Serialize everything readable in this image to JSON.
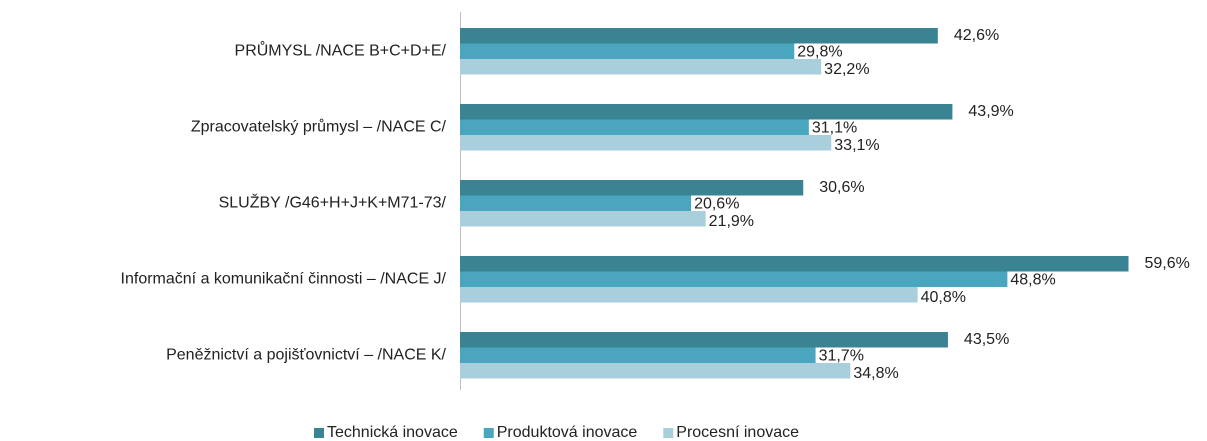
{
  "chart_data": {
    "type": "hbar",
    "categories": [
      "PRŮMYSL  /NACE B+C+D+E/",
      "Zpracovatelský průmysl – /NACE C/",
      "SLUŽBY /G46+H+J+K+M71-73/",
      "Informační a komunikační činnosti – /NACE J/",
      "Peněžnictví a pojišťovnictví – /NACE K/"
    ],
    "series": [
      {
        "name": "Technická inovace",
        "color": "#3a8393",
        "values": [
          42.6,
          43.9,
          30.6,
          59.6,
          43.5
        ],
        "value_labels": [
          "42,6%",
          "43,9%",
          "30,6%",
          "59,6%",
          "43,5%"
        ]
      },
      {
        "name": "Produktová inovace",
        "color": "#4aa5be",
        "values": [
          29.8,
          31.1,
          20.6,
          48.8,
          31.7
        ],
        "value_labels": [
          "29,8%",
          "31,1%",
          "20,6%",
          "48,8%",
          "31,7%"
        ]
      },
      {
        "name": "Procesní inovace",
        "color": "#a9cfdc",
        "values": [
          32.2,
          33.1,
          21.9,
          40.8,
          34.8
        ],
        "value_labels": [
          "32,2%",
          "33,1%",
          "21,9%",
          "40,8%",
          "34,8%"
        ]
      }
    ],
    "xlim": [
      0,
      60
    ],
    "legend": "bottom"
  }
}
